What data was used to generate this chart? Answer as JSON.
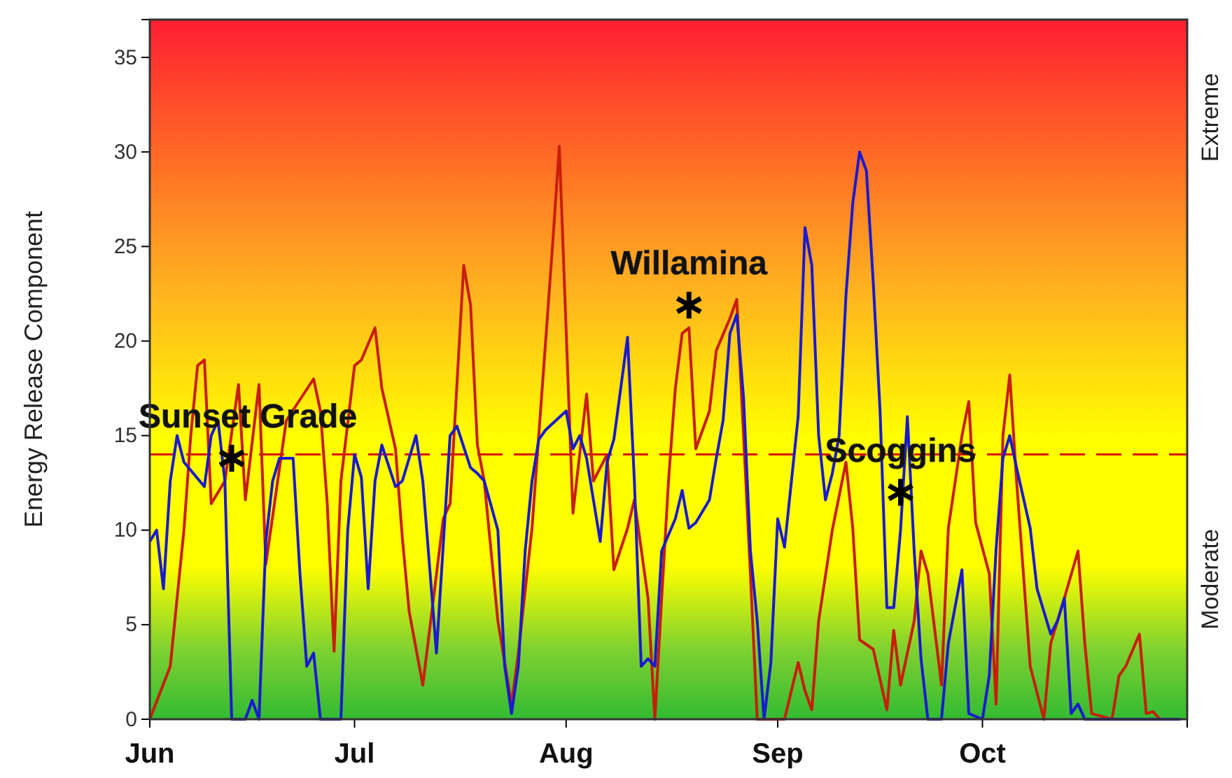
{
  "chart_data": {
    "type": "line",
    "ylabel": "Energy Release Component",
    "xlim": [
      "--06-01",
      "--10-31"
    ],
    "xticks": [
      {
        "value": "--06-01",
        "label": "Jun"
      },
      {
        "value": "--07-01",
        "label": "Jul"
      },
      {
        "value": "--08-01",
        "label": "Aug"
      },
      {
        "value": "--09-01",
        "label": "Sep"
      },
      {
        "value": "--10-01",
        "label": "Oct"
      }
    ],
    "ylim": [
      0,
      37
    ],
    "yticks": [
      0,
      5,
      10,
      15,
      20,
      25,
      30,
      35
    ],
    "ref_lines": [
      {
        "axis": "y",
        "value": 14,
        "label": null,
        "color": "#dd1100",
        "line_style": "dashed"
      }
    ],
    "series": [
      {
        "color": "#c81e0a",
        "x": [
          "--06-01",
          "--06-04",
          "--06-06",
          "--06-07",
          "--06-08",
          "--06-09",
          "--06-10",
          "--06-12",
          "--06-14",
          "--06-15",
          "--06-17",
          "--06-18",
          "--06-21",
          "--06-25",
          "--06-26",
          "--06-27",
          "--06-28",
          "--06-29",
          "--07-01",
          "--07-02",
          "--07-04",
          "--07-05",
          "--07-07",
          "--07-08",
          "--07-09",
          "--07-11",
          "--07-14",
          "--07-15",
          "--07-17",
          "--07-18",
          "--07-19",
          "--07-20",
          "--07-22",
          "--07-24",
          "--07-25",
          "--07-27",
          "--07-29",
          "--07-30",
          "--07-31",
          "--08-02",
          "--08-04",
          "--08-05",
          "--08-07",
          "--08-08",
          "--08-10",
          "--08-11",
          "--08-13",
          "--08-14",
          "--08-15",
          "--08-16",
          "--08-17",
          "--08-18",
          "--08-19",
          "--08-20",
          "--08-22",
          "--08-23",
          "--08-25",
          "--08-26",
          "--08-27",
          "--08-28",
          "--08-29",
          "--09-02",
          "--09-04",
          "--09-05",
          "--09-06",
          "--09-07",
          "--09-09",
          "--09-11",
          "--09-12",
          "--09-13",
          "--09-15",
          "--09-17",
          "--09-18",
          "--09-19",
          "--09-21",
          "--09-22",
          "--09-23",
          "--09-25",
          "--09-26",
          "--09-28",
          "--09-29",
          "--09-30",
          "--10-02",
          "--10-03",
          "--10-04",
          "--10-05",
          "--10-06",
          "--10-08",
          "--10-10",
          "--10-11",
          "--10-13",
          "--10-15",
          "--10-16",
          "--10-17",
          "--10-20",
          "--10-21",
          "--10-22",
          "--10-24",
          "--10-25",
          "--10-26",
          "--10-27",
          "--10-30"
        ],
        "values": [
          0,
          2.8,
          10,
          15,
          18.7,
          19,
          11.4,
          12.6,
          17.7,
          11.6,
          17.7,
          8.2,
          15.8,
          18,
          16.3,
          11.4,
          3.6,
          12.6,
          18.7,
          19,
          20.7,
          17.5,
          14.3,
          9.6,
          5.7,
          1.8,
          10.6,
          11.4,
          24,
          21.9,
          14.5,
          12.6,
          5.2,
          0.8,
          3.5,
          10.1,
          20,
          25,
          30.3,
          10.9,
          17.2,
          12.6,
          14,
          7.9,
          10.1,
          11.6,
          6.4,
          0,
          6.4,
          12.6,
          17.5,
          20.4,
          20.7,
          14.3,
          16.3,
          19.5,
          21.2,
          22.2,
          15,
          7.7,
          0,
          0,
          3,
          1.5,
          0.5,
          5.2,
          10,
          13.6,
          10.1,
          4.2,
          3.7,
          0.5,
          4.7,
          1.8,
          5.2,
          8.9,
          7.7,
          1.8,
          10.1,
          15,
          16.8,
          10.4,
          7.7,
          0.8,
          15,
          18.2,
          12.6,
          2.8,
          0,
          4,
          6.4,
          8.9,
          4,
          0.3,
          0,
          2.3,
          2.8,
          4.5,
          0.3,
          0.4,
          0,
          0
        ]
      },
      {
        "color": "#1a1ad0",
        "x": [
          "--06-01",
          "--06-02",
          "--06-03",
          "--06-04",
          "--06-05",
          "--06-06",
          "--06-09",
          "--06-10",
          "--06-11",
          "--06-12",
          "--06-13",
          "--06-15",
          "--06-16",
          "--06-17",
          "--06-18",
          "--06-19",
          "--06-20",
          "--06-22",
          "--06-23",
          "--06-24",
          "--06-25",
          "--06-26",
          "--06-29",
          "--06-30",
          "--07-01",
          "--07-02",
          "--07-03",
          "--07-04",
          "--07-05",
          "--07-07",
          "--07-08",
          "--07-10",
          "--07-11",
          "--07-13",
          "--07-15",
          "--07-16",
          "--07-18",
          "--07-19",
          "--07-20",
          "--07-22",
          "--07-23",
          "--07-24",
          "--07-25",
          "--07-26",
          "--07-27",
          "--07-28",
          "--07-29",
          "--08-01",
          "--08-02",
          "--08-03",
          "--08-04",
          "--08-06",
          "--08-07",
          "--08-08",
          "--08-09",
          "--08-10",
          "--08-11",
          "--08-12",
          "--08-13",
          "--08-14",
          "--08-15",
          "--08-17",
          "--08-18",
          "--08-19",
          "--08-20",
          "--08-22",
          "--08-23",
          "--08-24",
          "--08-25",
          "--08-26",
          "--08-27",
          "--08-28",
          "--08-29",
          "--08-30",
          "--08-31",
          "--09-01",
          "--09-02",
          "--09-04",
          "--09-05",
          "--09-06",
          "--09-07",
          "--09-08",
          "--09-09",
          "--09-10",
          "--09-11",
          "--09-12",
          "--09-13",
          "--09-14",
          "--09-15",
          "--09-16",
          "--09-17",
          "--09-18",
          "--09-19",
          "--09-20",
          "--09-21",
          "--09-22",
          "--09-23",
          "--09-25",
          "--09-26",
          "--09-28",
          "--09-29",
          "--10-01",
          "--10-02",
          "--10-03",
          "--10-04",
          "--10-05",
          "--10-06",
          "--10-08",
          "--10-09",
          "--10-11",
          "--10-12",
          "--10-13",
          "--10-14",
          "--10-15",
          "--10-16",
          "--10-30"
        ],
        "values": [
          9.4,
          10,
          6.9,
          12.6,
          15,
          13.6,
          12.3,
          15,
          15.8,
          12.6,
          0,
          0,
          1,
          0,
          9.4,
          12.6,
          13.8,
          13.8,
          7.7,
          2.8,
          3.5,
          0,
          0,
          10,
          14,
          12.8,
          6.9,
          12.6,
          14.5,
          12.3,
          12.6,
          15,
          12.6,
          3.5,
          15,
          15.5,
          13.3,
          13,
          12.6,
          10,
          2.8,
          0.3,
          2.8,
          8.9,
          12.6,
          14.8,
          15.3,
          16.3,
          14.3,
          15,
          13.8,
          9.4,
          13.6,
          14.8,
          17.5,
          20.2,
          12.6,
          2.8,
          3.2,
          2.8,
          8.9,
          10.6,
          12.1,
          10.1,
          10.4,
          11.6,
          13.8,
          15.8,
          20.4,
          21.4,
          17,
          8.9,
          5.2,
          0,
          3,
          10.6,
          9.1,
          16,
          26,
          24,
          15,
          11.6,
          13,
          15,
          22.4,
          27.3,
          30,
          29,
          23.1,
          16.3,
          5.9,
          5.9,
          10,
          16,
          8.9,
          3.2,
          0,
          0,
          4,
          7.9,
          0.3,
          0,
          2.3,
          9,
          13.8,
          15,
          13.3,
          10.1,
          6.9,
          4.5,
          5.2,
          6.4,
          0.3,
          0.8,
          0,
          0
        ]
      },
      {
        "type": "scatter",
        "marker": "cross",
        "color": "#000000",
        "x": [
          "--06-13",
          "--08-19",
          "--09-19"
        ],
        "values": [
          13.8,
          21.9,
          12
        ]
      }
    ],
    "annotations": [
      "Extreme",
      "Moderate",
      {
        "text": "Sunset Grade",
        "x": "--06-13",
        "y": 13.8
      },
      {
        "text": "Willamina",
        "x": "--08-19",
        "y": 21.9
      },
      {
        "text": "Scoggins",
        "x": "--09-19",
        "y": 12
      }
    ]
  }
}
